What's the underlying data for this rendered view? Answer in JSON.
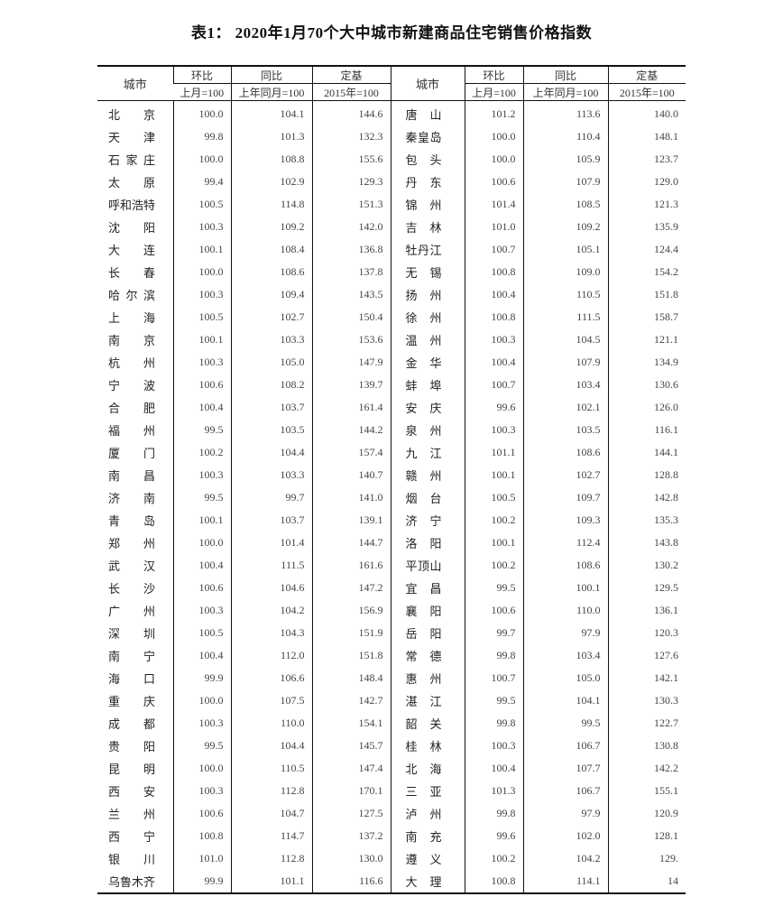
{
  "title": "表1： 2020年1月70个大中城市新建商品住宅销售价格指数",
  "headers": {
    "city": "城市",
    "mom": "环比",
    "mom_base": "上月=100",
    "yoy": "同比",
    "yoy_base": "上年同月=100",
    "fixed": "定基",
    "fixed_base": "2015年=100"
  },
  "rows": [
    [
      [
        "北京",
        "100.0",
        "104.1",
        "144.6"
      ],
      [
        "唐山",
        "101.2",
        "113.6",
        "140.0"
      ]
    ],
    [
      [
        "天津",
        "99.8",
        "101.3",
        "132.3"
      ],
      [
        "秦皇岛",
        "100.0",
        "110.4",
        "148.1"
      ]
    ],
    [
      [
        "石家庄",
        "100.0",
        "108.8",
        "155.6"
      ],
      [
        "包头",
        "100.0",
        "105.9",
        "123.7"
      ]
    ],
    [
      [
        "太原",
        "99.4",
        "102.9",
        "129.3"
      ],
      [
        "丹东",
        "100.6",
        "107.9",
        "129.0"
      ]
    ],
    [
      [
        "呼和浩特",
        "100.5",
        "114.8",
        "151.3"
      ],
      [
        "锦州",
        "101.4",
        "108.5",
        "121.3"
      ]
    ],
    [
      [
        "沈阳",
        "100.3",
        "109.2",
        "142.0"
      ],
      [
        "吉林",
        "101.0",
        "109.2",
        "135.9"
      ]
    ],
    [
      [
        "大连",
        "100.1",
        "108.4",
        "136.8"
      ],
      [
        "牡丹江",
        "100.7",
        "105.1",
        "124.4"
      ]
    ],
    [
      [
        "长春",
        "100.0",
        "108.6",
        "137.8"
      ],
      [
        "无锡",
        "100.8",
        "109.0",
        "154.2"
      ]
    ],
    [
      [
        "哈尔滨",
        "100.3",
        "109.4",
        "143.5"
      ],
      [
        "扬州",
        "100.4",
        "110.5",
        "151.8"
      ]
    ],
    [
      [
        "上海",
        "100.5",
        "102.7",
        "150.4"
      ],
      [
        "徐州",
        "100.8",
        "111.5",
        "158.7"
      ]
    ],
    [
      [
        "南京",
        "100.1",
        "103.3",
        "153.6"
      ],
      [
        "温州",
        "100.3",
        "104.5",
        "121.1"
      ]
    ],
    [
      [
        "杭州",
        "100.3",
        "105.0",
        "147.9"
      ],
      [
        "金华",
        "100.4",
        "107.9",
        "134.9"
      ]
    ],
    [
      [
        "宁波",
        "100.6",
        "108.2",
        "139.7"
      ],
      [
        "蚌埠",
        "100.7",
        "103.4",
        "130.6"
      ]
    ],
    [
      [
        "合肥",
        "100.4",
        "103.7",
        "161.4"
      ],
      [
        "安庆",
        "99.6",
        "102.1",
        "126.0"
      ]
    ],
    [
      [
        "福州",
        "99.5",
        "103.5",
        "144.2"
      ],
      [
        "泉州",
        "100.3",
        "103.5",
        "116.1"
      ]
    ],
    [
      [
        "厦门",
        "100.2",
        "104.4",
        "157.4"
      ],
      [
        "九江",
        "101.1",
        "108.6",
        "144.1"
      ]
    ],
    [
      [
        "南昌",
        "100.3",
        "103.3",
        "140.7"
      ],
      [
        "赣州",
        "100.1",
        "102.7",
        "128.8"
      ]
    ],
    [
      [
        "济南",
        "99.5",
        "99.7",
        "141.0"
      ],
      [
        "烟台",
        "100.5",
        "109.7",
        "142.8"
      ]
    ],
    [
      [
        "青岛",
        "100.1",
        "103.7",
        "139.1"
      ],
      [
        "济宁",
        "100.2",
        "109.3",
        "135.3"
      ]
    ],
    [
      [
        "郑州",
        "100.0",
        "101.4",
        "144.7"
      ],
      [
        "洛阳",
        "100.1",
        "112.4",
        "143.8"
      ]
    ],
    [
      [
        "武汉",
        "100.4",
        "111.5",
        "161.6"
      ],
      [
        "平顶山",
        "100.2",
        "108.6",
        "130.2"
      ]
    ],
    [
      [
        "长沙",
        "100.6",
        "104.6",
        "147.2"
      ],
      [
        "宜昌",
        "99.5",
        "100.1",
        "129.5"
      ]
    ],
    [
      [
        "广州",
        "100.3",
        "104.2",
        "156.9"
      ],
      [
        "襄阳",
        "100.6",
        "110.0",
        "136.1"
      ]
    ],
    [
      [
        "深圳",
        "100.5",
        "104.3",
        "151.9"
      ],
      [
        "岳阳",
        "99.7",
        "97.9",
        "120.3"
      ]
    ],
    [
      [
        "南宁",
        "100.4",
        "112.0",
        "151.8"
      ],
      [
        "常德",
        "99.8",
        "103.4",
        "127.6"
      ]
    ],
    [
      [
        "海口",
        "99.9",
        "106.6",
        "148.4"
      ],
      [
        "惠州",
        "100.7",
        "105.0",
        "142.1"
      ]
    ],
    [
      [
        "重庆",
        "100.0",
        "107.5",
        "142.7"
      ],
      [
        "湛江",
        "99.5",
        "104.1",
        "130.3"
      ]
    ],
    [
      [
        "成都",
        "100.3",
        "110.0",
        "154.1"
      ],
      [
        "韶关",
        "99.8",
        "99.5",
        "122.7"
      ]
    ],
    [
      [
        "贵阳",
        "99.5",
        "104.4",
        "145.7"
      ],
      [
        "桂林",
        "100.3",
        "106.7",
        "130.8"
      ]
    ],
    [
      [
        "昆明",
        "100.0",
        "110.5",
        "147.4"
      ],
      [
        "北海",
        "100.4",
        "107.7",
        "142.2"
      ]
    ],
    [
      [
        "西安",
        "100.3",
        "112.8",
        "170.1"
      ],
      [
        "三亚",
        "101.3",
        "106.7",
        "155.1"
      ]
    ],
    [
      [
        "兰州",
        "100.6",
        "104.7",
        "127.5"
      ],
      [
        "泸州",
        "99.8",
        "97.9",
        "120.9"
      ]
    ],
    [
      [
        "西宁",
        "100.8",
        "114.7",
        "137.2"
      ],
      [
        "南充",
        "99.6",
        "102.0",
        "128.1"
      ]
    ],
    [
      [
        "银川",
        "101.0",
        "112.8",
        "130.0"
      ],
      [
        "遵义",
        "100.2",
        "104.2",
        "129."
      ]
    ],
    [
      [
        "乌鲁木齐",
        "99.9",
        "101.1",
        "116.6"
      ],
      [
        "大理",
        "100.8",
        "114.1",
        "14"
      ]
    ]
  ]
}
